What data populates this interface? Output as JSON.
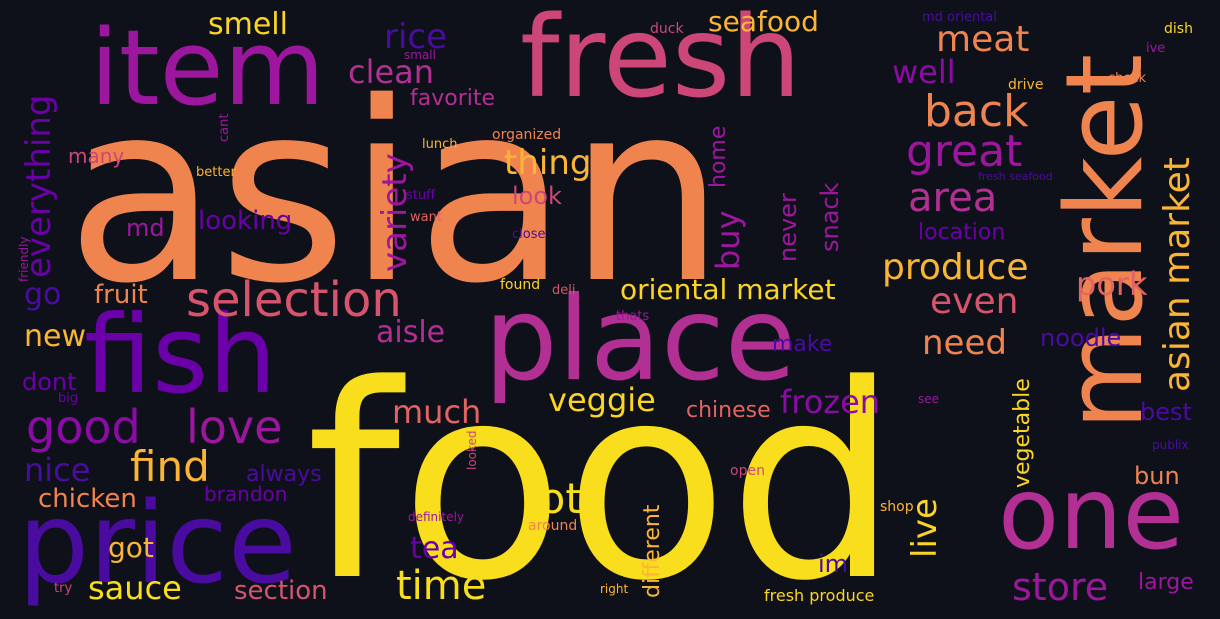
{
  "palette": {
    "yellow": "#f9de1e",
    "orange": "#f0844f",
    "pink": "#cc4778",
    "magenta": "#9c179e",
    "purple": "#6a00a8",
    "indigo": "#4a0ca0"
  },
  "words": [
    {
      "text": "asian",
      "color": "#f0844f"
    },
    {
      "text": "food",
      "color": "#f9de1e"
    },
    {
      "text": "fresh",
      "color": "#cc4778"
    },
    {
      "text": "item",
      "color": "#9c179e"
    },
    {
      "text": "place",
      "color": "#b22f94"
    },
    {
      "text": "market",
      "color": "#f0844f"
    },
    {
      "text": "fish",
      "color": "#6a00a8"
    },
    {
      "text": "price",
      "color": "#4a0ca0"
    },
    {
      "text": "one",
      "color": "#b22f94"
    },
    {
      "text": "selection",
      "color": "#d6556d"
    },
    {
      "text": "good",
      "color": "#8a0ca5"
    },
    {
      "text": "love",
      "color": "#9c179e"
    },
    {
      "text": "great",
      "color": "#9c179e"
    },
    {
      "text": "back",
      "color": "#f0844f"
    },
    {
      "text": "area",
      "color": "#b22f94"
    },
    {
      "text": "produce",
      "color": "#fbb535"
    },
    {
      "text": "asian market",
      "color": "#fbb535"
    },
    {
      "text": "meat",
      "color": "#f0844f"
    },
    {
      "text": "well",
      "color": "#8a0ca5"
    },
    {
      "text": "even",
      "color": "#d6556d"
    },
    {
      "text": "pork",
      "color": "#e16462"
    },
    {
      "text": "need",
      "color": "#f0844f"
    },
    {
      "text": "find",
      "color": "#fbb535"
    },
    {
      "text": "everything",
      "color": "#6a00a8"
    },
    {
      "text": "variety",
      "color": "#9c179e"
    },
    {
      "text": "thing",
      "color": "#fbb535"
    },
    {
      "text": "smell",
      "color": "#fbd524"
    },
    {
      "text": "rice",
      "color": "#4a0ca0"
    },
    {
      "text": "clean",
      "color": "#b22f94"
    },
    {
      "text": "seafood",
      "color": "#fbb535"
    },
    {
      "text": "oriental market",
      "color": "#fbd524"
    },
    {
      "text": "store",
      "color": "#9c179e"
    },
    {
      "text": "time",
      "color": "#f9de1e"
    },
    {
      "text": "lot",
      "color": "#f9de1e"
    },
    {
      "text": "veggie",
      "color": "#fbd524"
    },
    {
      "text": "frozen",
      "color": "#8a0ca5"
    },
    {
      "text": "much",
      "color": "#e16462"
    },
    {
      "text": "aisle",
      "color": "#b22f94"
    },
    {
      "text": "nice",
      "color": "#4a0ca0"
    },
    {
      "text": "chicken",
      "color": "#f0844f"
    },
    {
      "text": "sauce",
      "color": "#f9de1e"
    },
    {
      "text": "got",
      "color": "#fbb535"
    },
    {
      "text": "new",
      "color": "#fbb535"
    },
    {
      "text": "tea",
      "color": "#6a00a8"
    },
    {
      "text": "live",
      "color": "#fbd524"
    },
    {
      "text": "buy",
      "color": "#9c179e"
    },
    {
      "text": "fruit",
      "color": "#f0844f"
    },
    {
      "text": "go",
      "color": "#4a0ca0"
    },
    {
      "text": "looking",
      "color": "#6a00a8"
    },
    {
      "text": "md",
      "color": "#9c179e"
    },
    {
      "text": "favorite",
      "color": "#b22f94"
    },
    {
      "text": "look",
      "color": "#cc4778"
    },
    {
      "text": "snack",
      "color": "#9c179e"
    },
    {
      "text": "never",
      "color": "#9c179e"
    },
    {
      "text": "home",
      "color": "#9c179e"
    },
    {
      "text": "location",
      "color": "#6a00a8"
    },
    {
      "text": "noodle",
      "color": "#4a0ca0"
    },
    {
      "text": "make",
      "color": "#4a0ca0"
    },
    {
      "text": "vegetable",
      "color": "#fbd524"
    },
    {
      "text": "best",
      "color": "#4a0ca0"
    },
    {
      "text": "bun",
      "color": "#f0844f"
    },
    {
      "text": "large",
      "color": "#9c179e"
    },
    {
      "text": "chinese",
      "color": "#e16462"
    },
    {
      "text": "different",
      "color": "#fbb535"
    },
    {
      "text": "im",
      "color": "#4a0ca0"
    },
    {
      "text": "section",
      "color": "#d6556d"
    },
    {
      "text": "always",
      "color": "#4a0ca0"
    },
    {
      "text": "brandon",
      "color": "#6a00a8"
    },
    {
      "text": "dont",
      "color": "#6a00a8"
    },
    {
      "text": "many",
      "color": "#cc4778"
    },
    {
      "text": "fresh produce",
      "color": "#fbd524"
    },
    {
      "text": "duck",
      "color": "#cc4778"
    },
    {
      "text": "md oriental",
      "color": "#4a0ca0"
    },
    {
      "text": "dish",
      "color": "#fbd524"
    },
    {
      "text": "ive",
      "color": "#9c179e"
    },
    {
      "text": "drive",
      "color": "#fbb535"
    },
    {
      "text": "check",
      "color": "#f0844f"
    },
    {
      "text": "small",
      "color": "#9c179e"
    },
    {
      "text": "organized",
      "color": "#f0844f"
    },
    {
      "text": "lunch",
      "color": "#fbb535"
    },
    {
      "text": "cant",
      "color": "#9c179e"
    },
    {
      "text": "better",
      "color": "#fbb535"
    },
    {
      "text": "stuff",
      "color": "#6a00a8"
    },
    {
      "text": "want",
      "color": "#e16462"
    },
    {
      "text": "close",
      "color": "#4a0ca0"
    },
    {
      "text": "fresh seafood",
      "color": "#4a0ca0"
    },
    {
      "text": "friendly",
      "color": "#9c179e"
    },
    {
      "text": "found",
      "color": "#fbd524"
    },
    {
      "text": "deli",
      "color": "#d6556d"
    },
    {
      "text": "thats",
      "color": "#9c179e"
    },
    {
      "text": "big",
      "color": "#6a00a8"
    },
    {
      "text": "looked",
      "color": "#cc4778"
    },
    {
      "text": "see",
      "color": "#9c179e"
    },
    {
      "text": "publix",
      "color": "#4a0ca0"
    },
    {
      "text": "open",
      "color": "#cc4778"
    },
    {
      "text": "definitely",
      "color": "#9c179e"
    },
    {
      "text": "around",
      "color": "#f0844f"
    },
    {
      "text": "shop",
      "color": "#fbb535"
    },
    {
      "text": "try",
      "color": "#cc4778"
    },
    {
      "text": "right",
      "color": "#fbb535"
    }
  ]
}
